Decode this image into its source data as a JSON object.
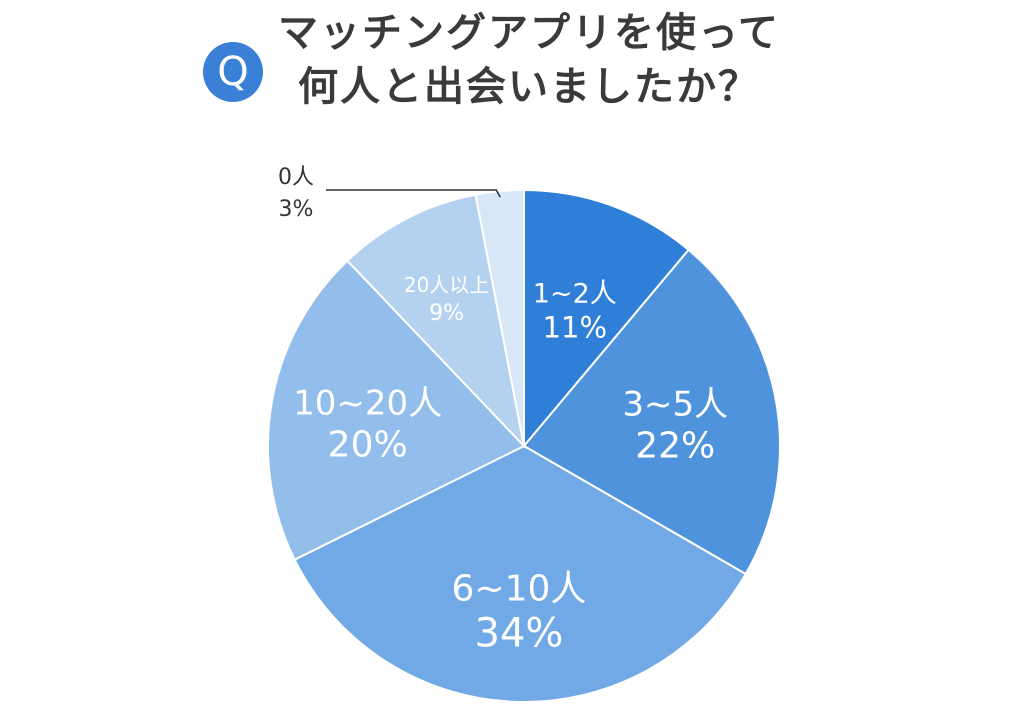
{
  "title": {
    "badge": "Q",
    "line1": "マッチングアプリを使って",
    "line2": "何人と出会いましたか？"
  },
  "chart_data": {
    "type": "pie",
    "title": "マッチングアプリを使って何人と出会いましたか？",
    "start_angle_deg": 0,
    "direction": "clockwise",
    "slices": [
      {
        "name": "1~2人",
        "value": 11,
        "label_pct": "11%",
        "color": "#2f7fd8"
      },
      {
        "name": "3~5人",
        "value": 22,
        "label_pct": "22%",
        "color": "#4f93dc"
      },
      {
        "name": "6~10人",
        "value": 34,
        "label_pct": "34%",
        "color": "#70a9e6"
      },
      {
        "name": "10~20人",
        "value": 20,
        "label_pct": "20%",
        "color": "#93bdea"
      },
      {
        "name": "20人以上",
        "value": 9,
        "label_pct": "9%",
        "color": "#b5d1f0"
      },
      {
        "name": "0人",
        "value": 3,
        "label_pct": "3%",
        "color": "#d8e7f8",
        "external_label": true
      }
    ]
  }
}
